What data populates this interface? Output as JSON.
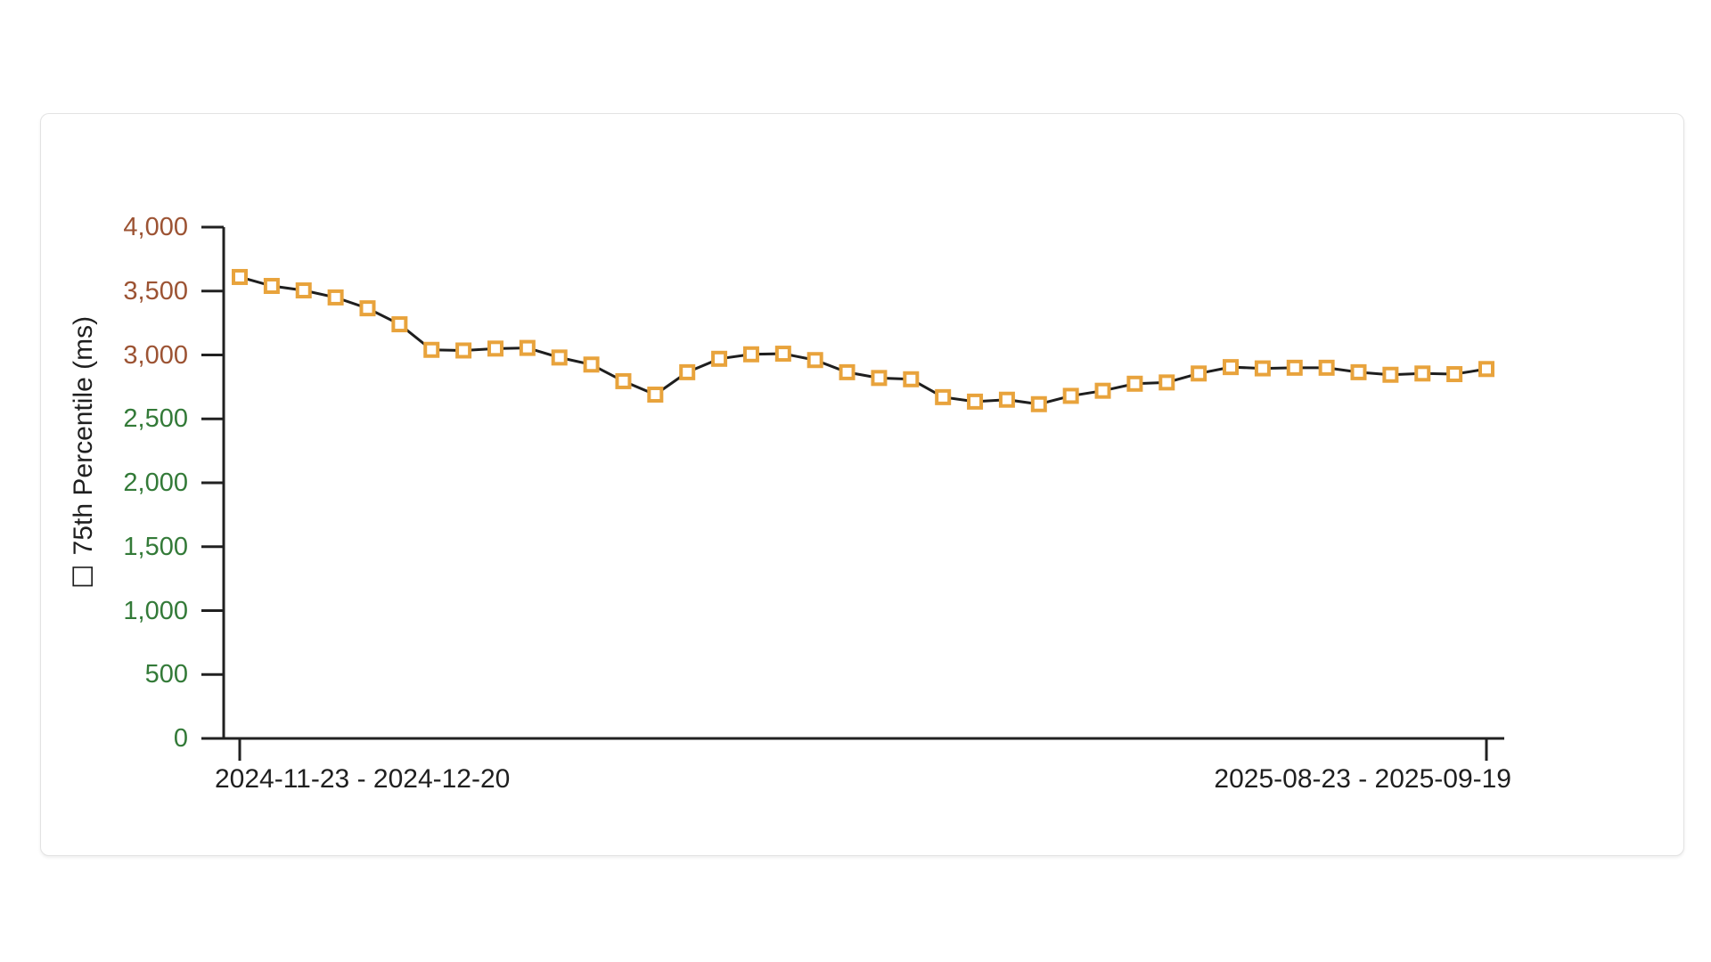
{
  "card": {
    "role": "chart-card"
  },
  "chart_data": {
    "type": "line",
    "title": "",
    "xlabel": "",
    "ylabel": "75th Percentile (ms)",
    "ylabel_checkbox_glyph": "☐",
    "ylim": [
      0,
      4000
    ],
    "grid": false,
    "legend_position": "none",
    "marker": "square",
    "colors": {
      "line": "#1e1e1e",
      "marker_stroke": "#e8a33c",
      "marker_fill": "#ffffff",
      "axis": "#212121",
      "tick_label_high": "#9c5333",
      "tick_label_low": "#337a38"
    },
    "y_ticks": [
      {
        "value": 0,
        "label": "0",
        "color": "#337a38"
      },
      {
        "value": 500,
        "label": "500",
        "color": "#337a38"
      },
      {
        "value": 1000,
        "label": "1,000",
        "color": "#337a38"
      },
      {
        "value": 1500,
        "label": "1,500",
        "color": "#337a38"
      },
      {
        "value": 2000,
        "label": "2,000",
        "color": "#337a38"
      },
      {
        "value": 2500,
        "label": "2,500",
        "color": "#337a38"
      },
      {
        "value": 3000,
        "label": "3,000",
        "color": "#9c5333"
      },
      {
        "value": 3500,
        "label": "3,500",
        "color": "#9c5333"
      },
      {
        "value": 4000,
        "label": "4,000",
        "color": "#9c5333"
      }
    ],
    "x_tick_labels": [
      "2024-11-23 - 2024-12-20",
      "2025-08-23 - 2025-09-19"
    ],
    "series": [
      {
        "name": "75th Percentile (ms)",
        "values": [
          3610,
          3540,
          3505,
          3450,
          3365,
          3240,
          3040,
          3035,
          3050,
          3055,
          2980,
          2925,
          2795,
          2690,
          2865,
          2970,
          3005,
          3010,
          2960,
          2865,
          2820,
          2810,
          2670,
          2635,
          2650,
          2615,
          2680,
          2720,
          2775,
          2785,
          2855,
          2905,
          2895,
          2900,
          2900,
          2865,
          2845,
          2855,
          2850,
          2890
        ]
      }
    ]
  }
}
